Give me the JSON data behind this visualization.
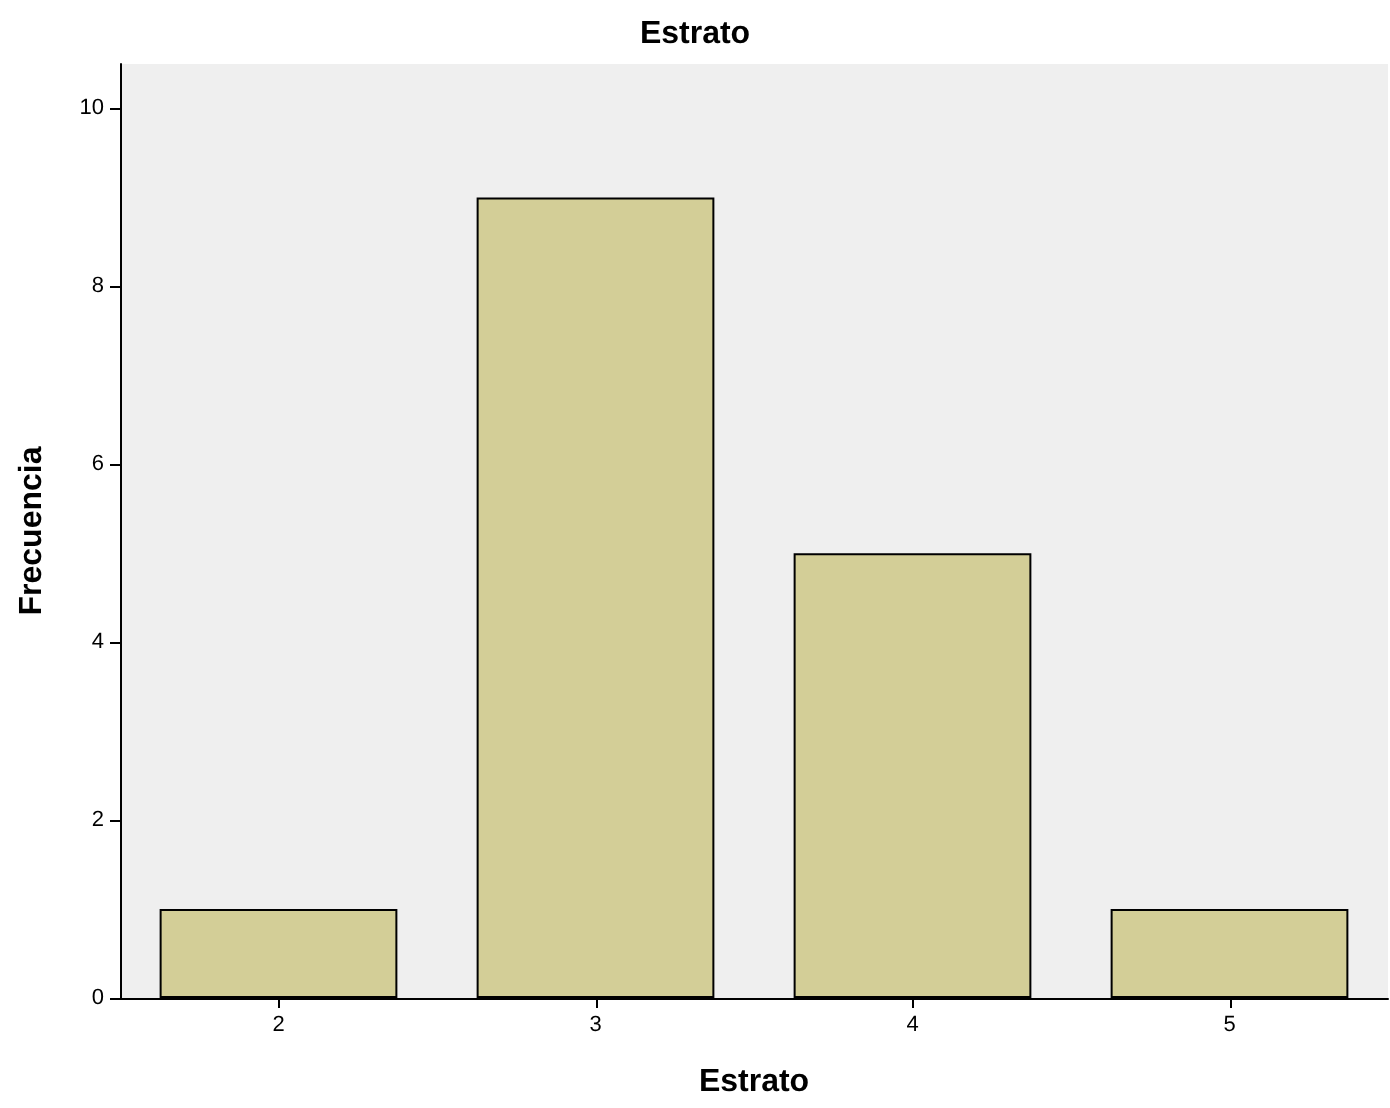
{
  "chart_data": {
    "type": "bar",
    "title": "Estrato",
    "xlabel": "Estrato",
    "ylabel": "Frecuencia",
    "categories": [
      "2",
      "3",
      "4",
      "5"
    ],
    "values": [
      1,
      9,
      5,
      1
    ],
    "color": "#d3ce97",
    "ylim": [
      0,
      10.5
    ],
    "yticks": [
      0,
      2,
      4,
      6,
      8,
      10
    ],
    "grid": false
  }
}
